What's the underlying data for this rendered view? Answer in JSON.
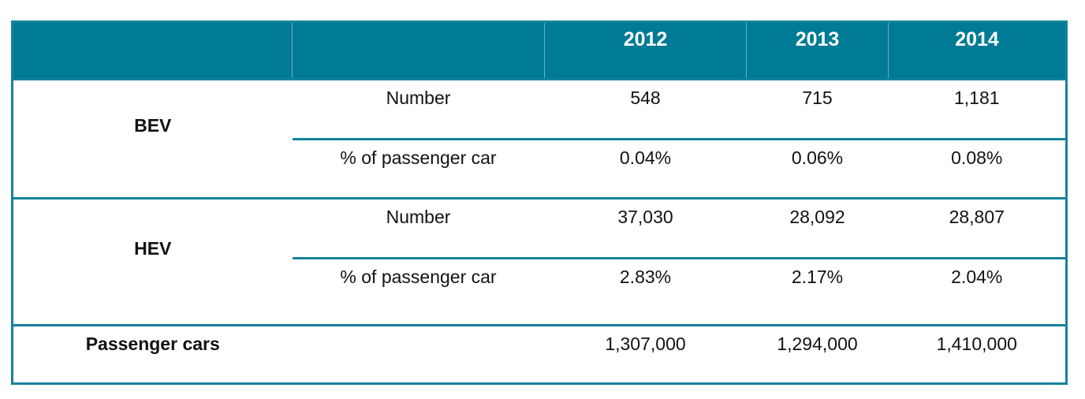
{
  "colors": {
    "header_bg": "#007b95",
    "border_teal": "#15829c",
    "header_text": "#ffffff",
    "body_text": "#121212"
  },
  "table": {
    "years": [
      "2012",
      "2013",
      "2014"
    ],
    "metric_labels": {
      "number": "Number",
      "pct": "% of passenger car"
    },
    "sections": [
      {
        "label": "BEV",
        "rows": [
          {
            "metric": "Number",
            "values": [
              "548",
              "715",
              "1,181"
            ]
          },
          {
            "metric": "% of passenger car",
            "values": [
              "0.04%",
              "0.06%",
              "0.08%"
            ]
          }
        ]
      },
      {
        "label": "HEV",
        "rows": [
          {
            "metric": "Number",
            "values": [
              "37,030",
              "28,092",
              "28,807"
            ]
          },
          {
            "metric": "% of passenger car",
            "values": [
              "2.83%",
              "2.17%",
              "2.04%"
            ]
          }
        ]
      }
    ],
    "footer": {
      "label": "Passenger cars",
      "values": [
        "1,307,000",
        "1,294,000",
        "1,410,000"
      ]
    }
  },
  "chart_data": {
    "type": "table",
    "title": "",
    "columns": [
      "",
      "",
      "2012",
      "2013",
      "2014"
    ],
    "rows": [
      [
        "BEV",
        "Number",
        "548",
        "715",
        "1,181"
      ],
      [
        "BEV",
        "% of passenger car",
        "0.04%",
        "0.06%",
        "0.08%"
      ],
      [
        "HEV",
        "Number",
        "37,030",
        "28,092",
        "28,807"
      ],
      [
        "HEV",
        "% of passenger car",
        "2.83%",
        "2.17%",
        "2.04%"
      ],
      [
        "Passenger cars",
        "",
        "1,307,000",
        "1,294,000",
        "1,410,000"
      ]
    ]
  }
}
